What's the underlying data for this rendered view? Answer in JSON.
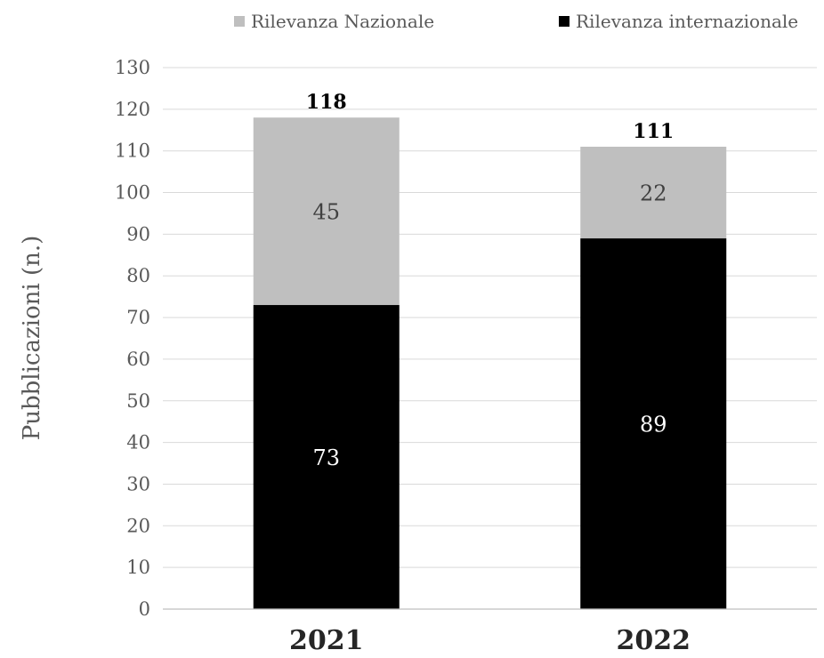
{
  "chart_data": {
    "type": "bar",
    "stacked": true,
    "categories": [
      "2021",
      "2022"
    ],
    "series": [
      {
        "name": "Rilevanza internazionale",
        "color": "#000000",
        "values": [
          73,
          89
        ]
      },
      {
        "name": "Rilevanza Nazionale",
        "color": "#bfbfbf",
        "values": [
          45,
          22
        ]
      }
    ],
    "totals": [
      "118",
      "111"
    ],
    "ylabel": "Pubblicazioni (n.)",
    "xlabel": "",
    "ylim": [
      0,
      130
    ],
    "yticks": [
      "0",
      "10",
      "20",
      "30",
      "40",
      "50",
      "60",
      "70",
      "80",
      "90",
      "100",
      "110",
      "120",
      "130"
    ],
    "grid": true,
    "legend": {
      "position": "top",
      "items": [
        {
          "label": "Rilevanza Nazionale",
          "color": "#bfbfbf"
        },
        {
          "label": "Rilevanza internazionale",
          "color": "#000000"
        }
      ]
    }
  }
}
